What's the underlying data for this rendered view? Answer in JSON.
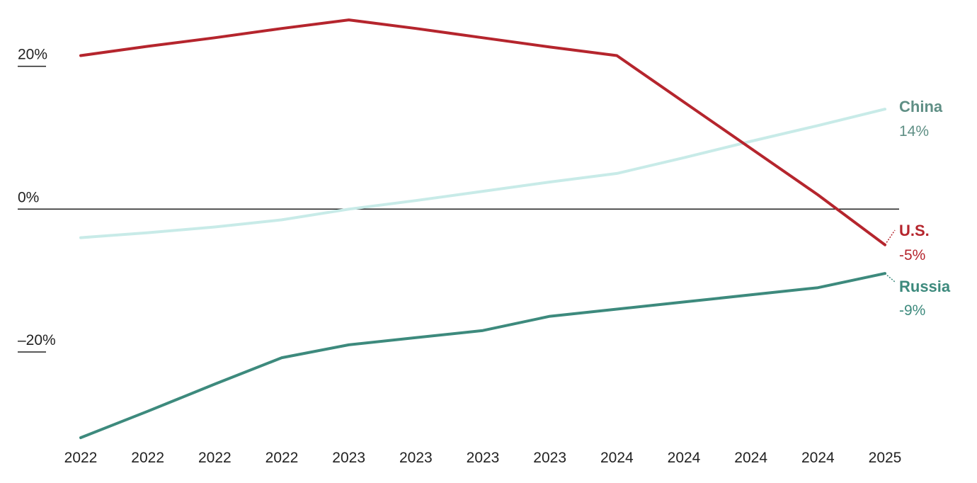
{
  "chart_data": {
    "type": "line",
    "x": [
      "2022",
      "2022",
      "2022",
      "2022",
      "2023",
      "2023",
      "2023",
      "2023",
      "2024",
      "2024",
      "2024",
      "2024",
      "2025"
    ],
    "y_ticks": [
      {
        "value": 20,
        "label": "20%"
      },
      {
        "value": 0,
        "label": "0%"
      },
      {
        "value": -20,
        "label": "–20%"
      }
    ],
    "ylim": [
      -32,
      27.5
    ],
    "grid": false,
    "series": [
      {
        "name": "U.S.",
        "end_label": "-5%",
        "color": "#b5252d",
        "label_color": "#b5252d",
        "width": 4,
        "values": [
          21.5,
          22.8,
          24,
          25.3,
          26.5,
          25.3,
          24,
          22.7,
          21.5,
          15,
          8.5,
          2,
          -5
        ]
      },
      {
        "name": "China",
        "end_label": "14%",
        "color": "#c8ebe8",
        "label_color": "#5f8f85",
        "width": 4,
        "values": [
          -4,
          -3.3,
          -2.5,
          -1.5,
          0,
          1.2,
          2.5,
          3.8,
          5,
          7.2,
          9.5,
          11.7,
          14
        ]
      },
      {
        "name": "Russia",
        "end_label": "-9%",
        "color": "#3d8a7d",
        "label_color": "#3d8a7d",
        "width": 4,
        "values": [
          -32,
          -28.3,
          -24.5,
          -20.8,
          -19,
          -18,
          -17,
          -15,
          -14,
          -13,
          -12,
          -11,
          -9
        ]
      }
    ]
  }
}
